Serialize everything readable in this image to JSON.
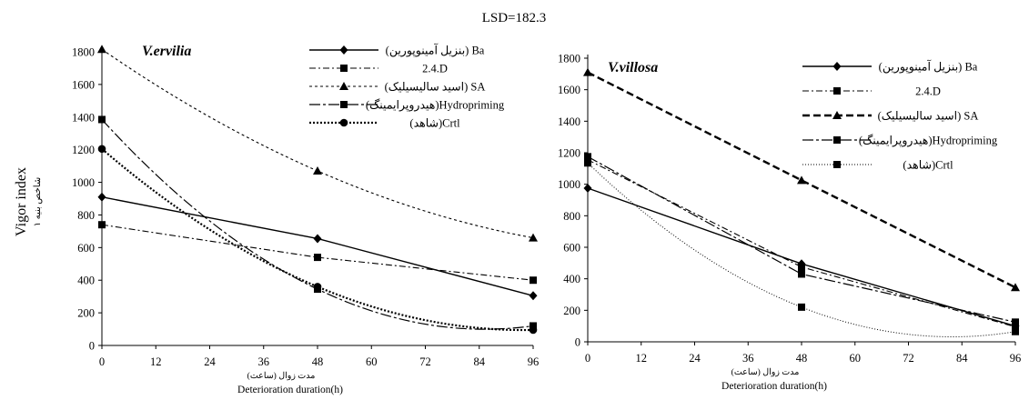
{
  "figure": {
    "header": "LSD=182.3",
    "ylabel_en": "Vigor index",
    "ylabel_fa": "شاخص بنیه ۱",
    "ylabel_sub": "1"
  },
  "chart_data": [
    {
      "type": "line",
      "title": "V.ervilia",
      "xlabel": "Deterioration duration(h)",
      "xlabel_fa": "مدت زوال (ساعت)",
      "ylabel": "Vigor index",
      "x_ticks": [
        0,
        12,
        24,
        36,
        48,
        60,
        72,
        84,
        96
      ],
      "y_ticks": [
        0,
        200,
        400,
        600,
        800,
        1000,
        1200,
        1400,
        1600,
        1800
      ],
      "xlim": [
        0,
        96
      ],
      "ylim": [
        0,
        1800
      ],
      "legend_position": "top-right",
      "x": [
        0,
        48,
        96
      ],
      "series": [
        {
          "name": "(بنزیل آمینوپورین) Ba",
          "values": [
            910,
            655,
            305
          ],
          "marker": "diamond",
          "dash": "",
          "width": 1.4,
          "color": "#000000",
          "smooth": false
        },
        {
          "name": "2.4.D",
          "values": [
            740,
            540,
            400
          ],
          "marker": "square",
          "dash": "7 3 2 3",
          "width": 1.1,
          "color": "#000000",
          "smooth": false
        },
        {
          "name": "(اسید سالیسیلیک) SA",
          "values": [
            1815,
            1070,
            660
          ],
          "marker": "triangle",
          "dash": "3 3",
          "width": 1.1,
          "color": "#000000",
          "smooth": true
        },
        {
          "name": "(هیدروپرایمینگ)Hydropriming",
          "values": [
            1385,
            345,
            120
          ],
          "marker": "square",
          "dash": "12 3 3 3",
          "width": 1.2,
          "color": "#000000",
          "smooth": true
        },
        {
          "name": "(شاهد)Crtl",
          "values": [
            1205,
            360,
            95
          ],
          "marker": "circle",
          "dash": "2 2",
          "width": 2.2,
          "color": "#000000",
          "smooth": true
        }
      ]
    },
    {
      "type": "line",
      "title": "V.villosa",
      "xlabel": "Deterioration duration(h)",
      "xlabel_fa": "مدت زوال (ساعت)",
      "ylabel": "",
      "x_ticks": [
        0,
        12,
        24,
        36,
        48,
        60,
        72,
        84,
        96
      ],
      "y_ticks": [
        0,
        200,
        400,
        600,
        800,
        1000,
        1200,
        1400,
        1600,
        1800
      ],
      "xlim": [
        0,
        96
      ],
      "ylim": [
        0,
        1800
      ],
      "legend_position": "top-right",
      "x": [
        0,
        48,
        96
      ],
      "series": [
        {
          "name": "(بنزیل آمینوپورین) Ba",
          "values": [
            975,
            495,
            100
          ],
          "marker": "diamond",
          "dash": "",
          "width": 1.4,
          "color": "#000000",
          "smooth": false
        },
        {
          "name": "2.4.D",
          "values": [
            1155,
            475,
            95
          ],
          "marker": "square",
          "dash": "7 3 2 3",
          "width": 1.1,
          "color": "#000000",
          "smooth": false
        },
        {
          "name": "(اسید سالیسیلیک) SA",
          "values": [
            1710,
            1025,
            345
          ],
          "marker": "triangle",
          "dash": "8 4",
          "width": 2.4,
          "color": "#000000",
          "smooth": false
        },
        {
          "name": "(هیدروپرایمینگ)Hydropriming",
          "values": [
            1175,
            430,
            125
          ],
          "marker": "square",
          "dash": "12 3 3 3",
          "width": 1.2,
          "color": "#000000",
          "smooth": false
        },
        {
          "name": "(شاهد)Crtl",
          "values": [
            1135,
            220,
            65
          ],
          "marker": "square",
          "dash": "1 2",
          "width": 1.0,
          "color": "#000000",
          "smooth": true
        }
      ]
    }
  ]
}
